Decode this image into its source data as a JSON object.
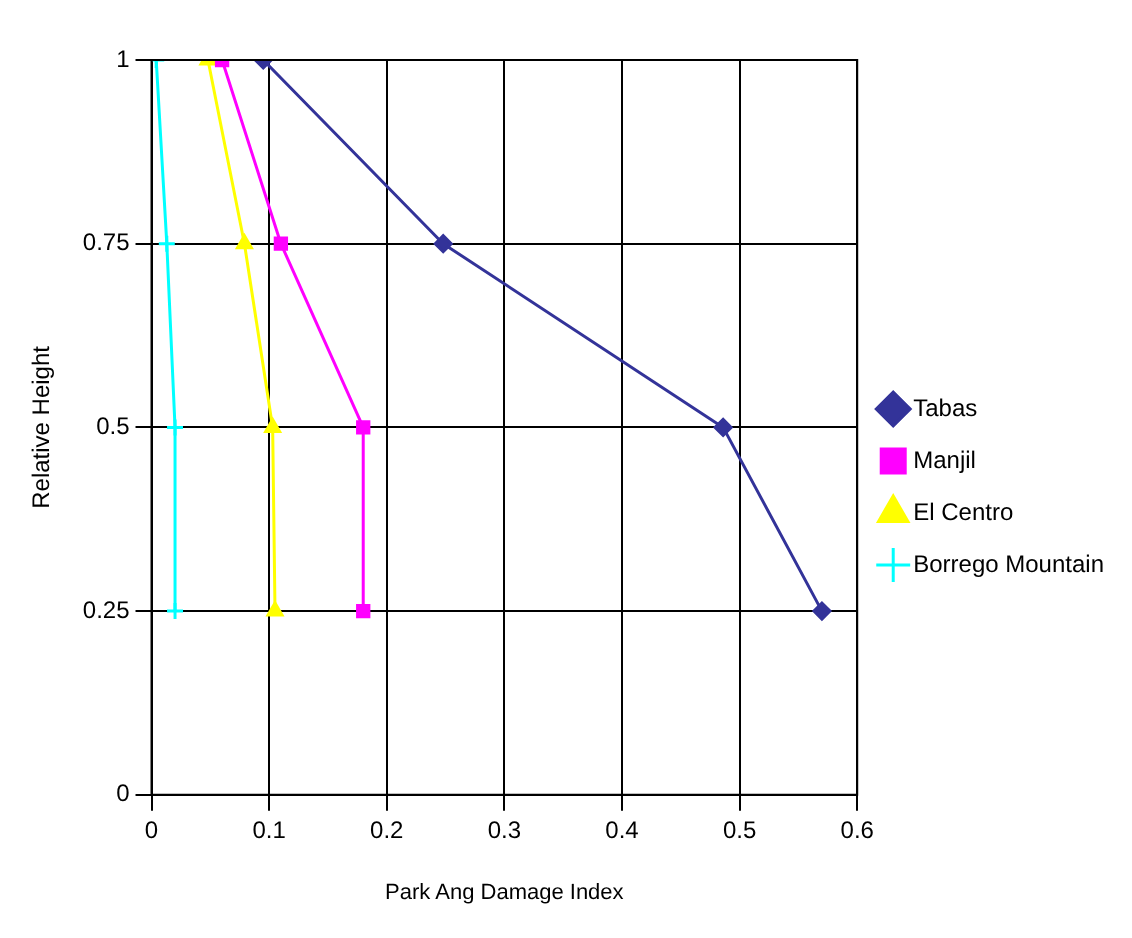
{
  "chart_data": {
    "type": "line",
    "xlabel": "Park Ang Damage Index",
    "ylabel": "Relative Height",
    "xlim": [
      0,
      0.6
    ],
    "xticks": [
      0,
      0.1,
      0.2,
      0.3,
      0.4,
      0.5,
      0.6
    ],
    "ylim": [
      0,
      1
    ],
    "yticks": [
      0,
      0.25,
      0.5,
      0.75,
      1
    ],
    "grid": true,
    "legend": "right",
    "line_style": "solid",
    "series": [
      {
        "name": "Tabas",
        "color": "#333399",
        "marker": "diamond",
        "x": [
          0.095,
          0.248,
          0.486,
          0.57
        ],
        "values": [
          1,
          0.75,
          0.5,
          0.25
        ]
      },
      {
        "name": "Manjil",
        "color": "#ff00ff",
        "marker": "square",
        "x": [
          0.06,
          0.11,
          0.18,
          0.18
        ],
        "values": [
          1,
          0.75,
          0.5,
          0.25
        ]
      },
      {
        "name": "El Centro",
        "color": "#ffff00",
        "marker": "triangle",
        "x": [
          0.048,
          0.079,
          0.103,
          0.105
        ],
        "values": [
          1,
          0.75,
          0.5,
          0.25
        ]
      },
      {
        "name": "Borrego Mountain",
        "color": "#00ffff",
        "marker": "cross",
        "x": [
          0.004,
          0.013,
          0.02,
          0.02
        ],
        "values": [
          1,
          0.75,
          0.5,
          0.25
        ]
      }
    ]
  }
}
